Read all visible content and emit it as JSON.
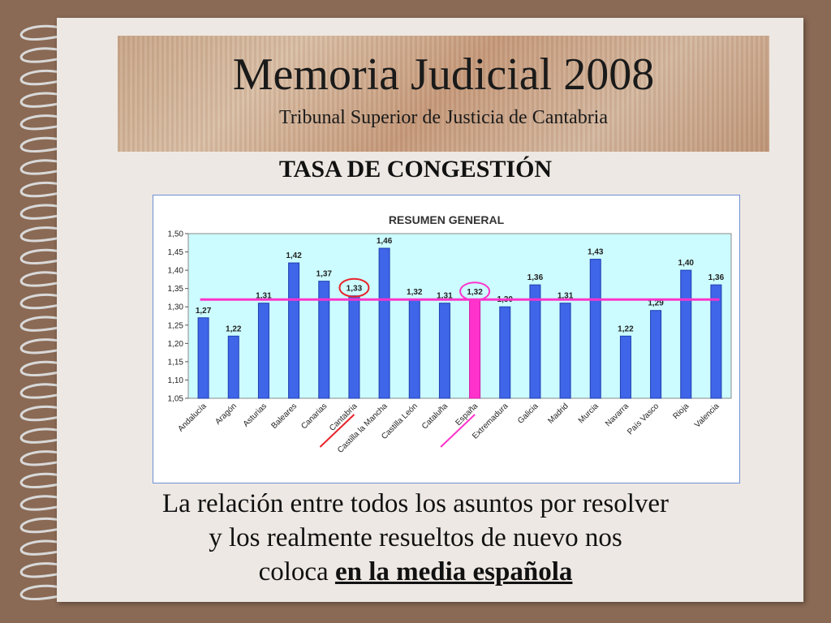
{
  "header": {
    "title": "Memoria Judicial 2008",
    "subtitle": "Tribunal Superior de Justicia de Cantabria"
  },
  "section_title": "TASA DE CONGESTIÓN",
  "caption": {
    "line1": "La relación entre todos los asuntos por resolver",
    "line2": "y los realmente resueltos de nuevo nos",
    "line3_prefix": "coloca ",
    "line3_emphasis": "en la media española"
  },
  "colors": {
    "bar": "#3f65e8",
    "bar_highlight": "#ff33cc",
    "plot_bg": "#ccfcff",
    "average_line": "#ff33cc",
    "circle_cantabria": "#e8232a",
    "circle_espana": "#ff33cc"
  },
  "chart_data": {
    "type": "bar",
    "title": "RESUMEN GENERAL",
    "categories": [
      "Andalucía",
      "Aragón",
      "Asturias",
      "Baleares",
      "Canarias",
      "Cantabria",
      "Castilla la Mancha",
      "Castilla León",
      "Cataluña",
      "España",
      "Extremadura",
      "Galicia",
      "Madrid",
      "Murcia",
      "Navarra",
      "País Vasco",
      "Rioja",
      "Valencia"
    ],
    "values": [
      1.27,
      1.22,
      1.31,
      1.42,
      1.37,
      1.33,
      1.46,
      1.32,
      1.31,
      1.32,
      1.3,
      1.36,
      1.31,
      1.43,
      1.22,
      1.29,
      1.4,
      1.36
    ],
    "value_labels": [
      "1,27",
      "1,22",
      "1,31",
      "1,42",
      "1,37",
      "1,33",
      "1,46",
      "1,32",
      "1,31",
      "1,32",
      "1,30",
      "1,36",
      "1,31",
      "1,43",
      "1,22",
      "1,29",
      "1,40",
      "1,36"
    ],
    "ylim": [
      1.05,
      1.5
    ],
    "y_ticks": [
      "1,05",
      "1,10",
      "1,15",
      "1,20",
      "1,25",
      "1,30",
      "1,35",
      "1,40",
      "1,45",
      "1,50"
    ],
    "average_line_value": 1.32,
    "highlighted_category": "España",
    "circled_categories": [
      "Cantabria",
      "España"
    ],
    "grid": false,
    "legend": "none"
  }
}
